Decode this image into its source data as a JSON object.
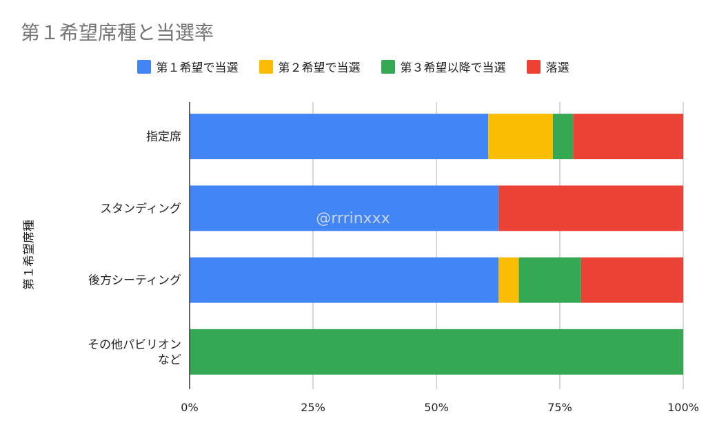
{
  "chart_data": {
    "type": "bar",
    "orientation": "horizontal",
    "stacked": "percent",
    "title": "第１希望席種と当選率",
    "xlabel": "",
    "ylabel": "第１希望席種",
    "categories": [
      "指定席",
      "スタンディング",
      "後方シーティング",
      "その他パビリオンなど"
    ],
    "series": [
      {
        "name": "第１希望で当選",
        "color": "#4285f4",
        "values": [
          60.5,
          62.6,
          62.6,
          0
        ]
      },
      {
        "name": "第２希望で当選",
        "color": "#fbbc04",
        "values": [
          13.1,
          0,
          4.1,
          0
        ]
      },
      {
        "name": "第３希望以降で当選",
        "color": "#34a853",
        "values": [
          4.1,
          0,
          12.6,
          100
        ]
      },
      {
        "name": "落選",
        "color": "#ea4335",
        "values": [
          22.3,
          37.4,
          20.7,
          0
        ]
      }
    ],
    "xlim": [
      0,
      100
    ],
    "xticks": [
      "0%",
      "25%",
      "50%",
      "75%",
      "100%"
    ],
    "grid": true,
    "legend": "top",
    "watermark": "@rrrinxxx"
  }
}
